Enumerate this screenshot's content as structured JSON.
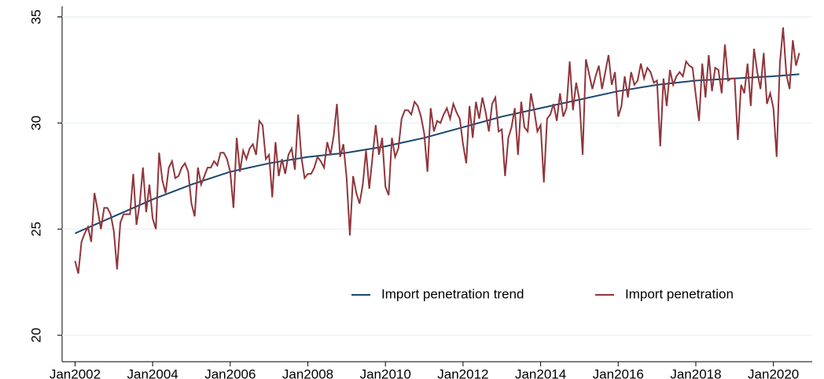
{
  "chart_data": {
    "type": "line",
    "xlim": [
      "2001-09",
      "2021-01"
    ],
    "xticks": [
      {
        "value": "2002-01",
        "label": "Jan2002"
      },
      {
        "value": "2004-01",
        "label": "Jan2004"
      },
      {
        "value": "2006-01",
        "label": "Jan2006"
      },
      {
        "value": "2008-01",
        "label": "Jan2008"
      },
      {
        "value": "2010-01",
        "label": "Jan2010"
      },
      {
        "value": "2012-01",
        "label": "Jan2012"
      },
      {
        "value": "2014-01",
        "label": "Jan2014"
      },
      {
        "value": "2016-01",
        "label": "Jan2016"
      },
      {
        "value": "2018-01",
        "label": "Jan2018"
      },
      {
        "value": "2020-01",
        "label": "Jan2020"
      }
    ],
    "ylim": [
      18.75,
      35.5
    ],
    "yticks": [
      20,
      25,
      30,
      35
    ],
    "grid": true,
    "series": [
      {
        "name": "Import penetration trend",
        "color": "#1a476f",
        "x": [
          "2002-01",
          "2003-01",
          "2004-01",
          "2005-01",
          "2006-01",
          "2007-01",
          "2008-01",
          "2009-01",
          "2010-01",
          "2011-01",
          "2012-01",
          "2013-01",
          "2014-01",
          "2015-01",
          "2016-01",
          "2017-01",
          "2018-01",
          "2019-01",
          "2020-01",
          "2020-09"
        ],
        "values": [
          24.8,
          25.6,
          26.4,
          27.1,
          27.7,
          28.1,
          28.4,
          28.6,
          28.9,
          29.3,
          29.8,
          30.3,
          30.7,
          31.1,
          31.5,
          31.8,
          32.0,
          32.1,
          32.2,
          32.3
        ]
      },
      {
        "name": "Import penetration",
        "color": "#90353b",
        "x": [
          "2002-01",
          "2002-02",
          "2002-03",
          "2002-04",
          "2002-05",
          "2002-06",
          "2002-07",
          "2002-08",
          "2002-09",
          "2002-10",
          "2002-11",
          "2002-12",
          "2003-01",
          "2003-02",
          "2003-03",
          "2003-04",
          "2003-05",
          "2003-06",
          "2003-07",
          "2003-08",
          "2003-09",
          "2003-10",
          "2003-11",
          "2003-12",
          "2004-01",
          "2004-02",
          "2004-03",
          "2004-04",
          "2004-05",
          "2004-06",
          "2004-07",
          "2004-08",
          "2004-09",
          "2004-10",
          "2004-11",
          "2004-12",
          "2005-01",
          "2005-02",
          "2005-03",
          "2005-04",
          "2005-05",
          "2005-06",
          "2005-07",
          "2005-08",
          "2005-09",
          "2005-10",
          "2005-11",
          "2005-12",
          "2006-01",
          "2006-02",
          "2006-03",
          "2006-04",
          "2006-05",
          "2006-06",
          "2006-07",
          "2006-08",
          "2006-09",
          "2006-10",
          "2006-11",
          "2006-12",
          "2007-01",
          "2007-02",
          "2007-03",
          "2007-04",
          "2007-05",
          "2007-06",
          "2007-07",
          "2007-08",
          "2007-09",
          "2007-10",
          "2007-11",
          "2007-12",
          "2008-01",
          "2008-02",
          "2008-03",
          "2008-04",
          "2008-05",
          "2008-06",
          "2008-07",
          "2008-08",
          "2008-09",
          "2008-10",
          "2008-11",
          "2008-12",
          "2009-01",
          "2009-02",
          "2009-03",
          "2009-04",
          "2009-05",
          "2009-06",
          "2009-07",
          "2009-08",
          "2009-09",
          "2009-10",
          "2009-11",
          "2009-12",
          "2010-01",
          "2010-02",
          "2010-03",
          "2010-04",
          "2010-05",
          "2010-06",
          "2010-07",
          "2010-08",
          "2010-09",
          "2010-10",
          "2010-11",
          "2010-12",
          "2011-01",
          "2011-02",
          "2011-03",
          "2011-04",
          "2011-05",
          "2011-06",
          "2011-07",
          "2011-08",
          "2011-09",
          "2011-10",
          "2011-11",
          "2011-12",
          "2012-01",
          "2012-02",
          "2012-03",
          "2012-04",
          "2012-05",
          "2012-06",
          "2012-07",
          "2012-08",
          "2012-09",
          "2012-10",
          "2012-11",
          "2012-12",
          "2013-01",
          "2013-02",
          "2013-03",
          "2013-04",
          "2013-05",
          "2013-06",
          "2013-07",
          "2013-08",
          "2013-09",
          "2013-10",
          "2013-11",
          "2013-12",
          "2014-01",
          "2014-02",
          "2014-03",
          "2014-04",
          "2014-05",
          "2014-06",
          "2014-07",
          "2014-08",
          "2014-09",
          "2014-10",
          "2014-11",
          "2014-12",
          "2015-01",
          "2015-02",
          "2015-03",
          "2015-04",
          "2015-05",
          "2015-06",
          "2015-07",
          "2015-08",
          "2015-09",
          "2015-10",
          "2015-11",
          "2015-12",
          "2016-01",
          "2016-02",
          "2016-03",
          "2016-04",
          "2016-05",
          "2016-06",
          "2016-07",
          "2016-08",
          "2016-09",
          "2016-10",
          "2016-11",
          "2016-12",
          "2017-01",
          "2017-02",
          "2017-03",
          "2017-04",
          "2017-05",
          "2017-06",
          "2017-07",
          "2017-08",
          "2017-09",
          "2017-10",
          "2017-11",
          "2017-12",
          "2018-01",
          "2018-02",
          "2018-03",
          "2018-04",
          "2018-05",
          "2018-06",
          "2018-07",
          "2018-08",
          "2018-09",
          "2018-10",
          "2018-11",
          "2018-12",
          "2019-01",
          "2019-02",
          "2019-03",
          "2019-04",
          "2019-05",
          "2019-06",
          "2019-07",
          "2019-08",
          "2019-09",
          "2019-10",
          "2019-11",
          "2019-12",
          "2020-01",
          "2020-02",
          "2020-03",
          "2020-04",
          "2020-05",
          "2020-06",
          "2020-07",
          "2020-08",
          "2020-09"
        ],
        "values": [
          23.5,
          22.9,
          24.4,
          24.8,
          25.1,
          24.4,
          26.7,
          25.9,
          25.0,
          26.0,
          26.0,
          25.7,
          24.9,
          23.1,
          25.3,
          25.7,
          25.7,
          25.7,
          27.6,
          25.2,
          26.2,
          27.9,
          25.8,
          27.1,
          25.5,
          25.0,
          28.6,
          27.3,
          26.7,
          27.9,
          28.2,
          27.4,
          27.5,
          27.9,
          28.1,
          27.7,
          26.2,
          25.6,
          27.9,
          27.1,
          27.5,
          27.9,
          27.9,
          28.2,
          28.0,
          28.6,
          28.6,
          28.3,
          27.7,
          26.0,
          29.3,
          27.7,
          28.7,
          28.3,
          28.8,
          29.0,
          28.5,
          30.1,
          29.9,
          28.3,
          28.5,
          26.5,
          29.1,
          27.5,
          28.3,
          27.6,
          28.5,
          28.8,
          27.8,
          30.4,
          28.4,
          27.4,
          27.6,
          27.6,
          27.9,
          28.4,
          28.2,
          27.9,
          29.1,
          28.5,
          29.4,
          30.9,
          28.4,
          29.0,
          27.4,
          24.7,
          27.5,
          26.7,
          26.2,
          27.1,
          28.7,
          26.9,
          28.4,
          29.9,
          28.5,
          29.3,
          27.0,
          26.6,
          29.3,
          28.4,
          28.8,
          30.2,
          30.6,
          30.6,
          30.4,
          31.0,
          30.8,
          30.3,
          29.5,
          27.7,
          30.7,
          29.6,
          30.1,
          30.0,
          30.4,
          30.7,
          30.2,
          30.9,
          30.5,
          30.2,
          29.0,
          28.1,
          30.8,
          29.3,
          31.0,
          30.2,
          31.2,
          30.5,
          29.6,
          30.9,
          31.2,
          29.6,
          29.7,
          27.5,
          29.3,
          29.8,
          30.7,
          28.5,
          31.0,
          29.8,
          29.6,
          31.4,
          30.6,
          29.6,
          29.9,
          27.2,
          30.2,
          30.4,
          30.9,
          30.1,
          31.4,
          30.3,
          30.7,
          32.9,
          30.6,
          31.9,
          31.1,
          28.5,
          33.0,
          32.3,
          31.6,
          32.2,
          32.7,
          31.6,
          32.4,
          33.2,
          31.8,
          32.4,
          30.3,
          30.8,
          32.2,
          31.2,
          32.4,
          31.8,
          32.0,
          32.8,
          32.1,
          32.6,
          32.4,
          31.9,
          32.0,
          28.9,
          32.1,
          30.8,
          32.5,
          31.8,
          32.2,
          32.4,
          32.2,
          32.9,
          32.7,
          32.6,
          31.3,
          30.1,
          32.8,
          31.2,
          33.2,
          31.5,
          32.6,
          32.5,
          31.4,
          33.7,
          32.0,
          32.1,
          32.1,
          29.2,
          31.8,
          31.4,
          32.8,
          30.8,
          33.5,
          32.4,
          31.6,
          33.3,
          30.9,
          31.4,
          30.7,
          28.4,
          32.8,
          34.5,
          32.3,
          31.6,
          33.9,
          32.7,
          33.3
        ]
      }
    ]
  }
}
